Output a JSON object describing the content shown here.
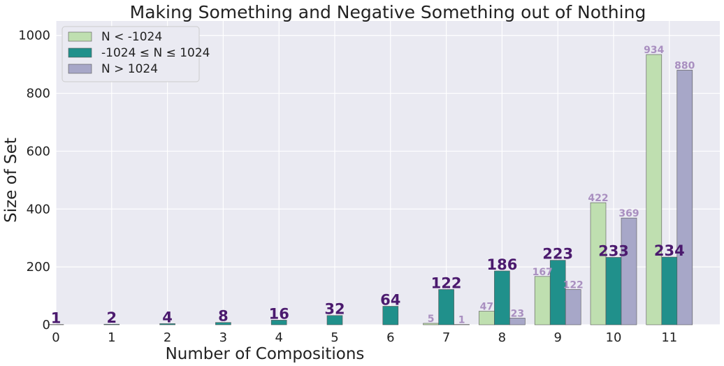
{
  "chart_data": {
    "type": "bar",
    "title": "Making Something and Negative Something out of Nothing",
    "xlabel": "Number of Compositions",
    "ylabel": "Size of Set",
    "categories": [
      "0",
      "1",
      "2",
      "3",
      "4",
      "5",
      "6",
      "7",
      "8",
      "9",
      "10",
      "11"
    ],
    "ylim": [
      0,
      1050
    ],
    "yticks": [
      0,
      200,
      400,
      600,
      800,
      1000
    ],
    "grid": true,
    "legend_position": "top-left",
    "series": [
      {
        "name": "N < -1024",
        "color": "#bfdfb0",
        "values": [
          0,
          0,
          0,
          0,
          0,
          0,
          0,
          5,
          47,
          167,
          422,
          934
        ],
        "labels": [
          "",
          "",
          "",
          "",
          "",
          "",
          "",
          "5",
          "47",
          "167",
          "422",
          "934"
        ]
      },
      {
        "name": "-1024 ≤ N ≤ 1024",
        "color": "#20908b",
        "values": [
          1,
          2,
          4,
          8,
          16,
          32,
          64,
          122,
          186,
          223,
          233,
          234
        ],
        "labels": [
          "1",
          "2",
          "4",
          "8",
          "16",
          "32",
          "64",
          "122",
          "186",
          "223",
          "233",
          "234"
        ]
      },
      {
        "name": "N > 1024",
        "color": "#a7a7c8",
        "values": [
          0,
          0,
          0,
          0,
          0,
          0,
          0,
          1,
          23,
          122,
          369,
          880
        ],
        "labels": [
          "",
          "",
          "",
          "",
          "",
          "",
          "",
          "1",
          "23",
          "122",
          "369",
          "880"
        ]
      }
    ]
  }
}
